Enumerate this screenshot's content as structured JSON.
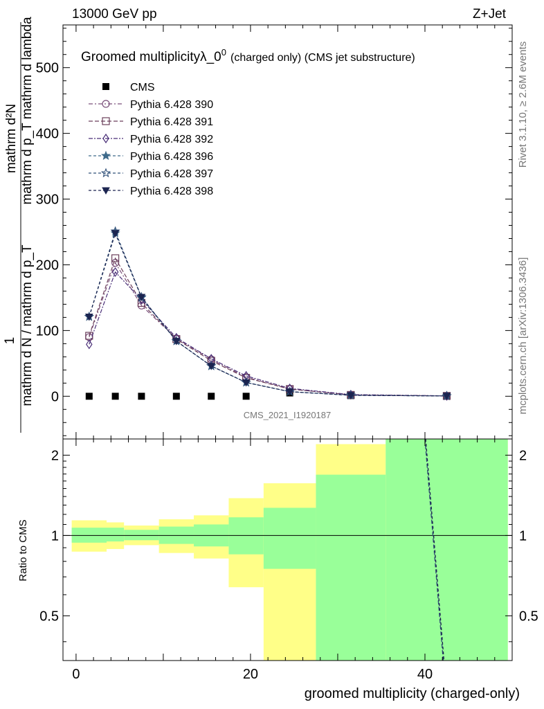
{
  "header": {
    "beam": "13000 GeV pp",
    "process": "Z+Jet"
  },
  "side_labels": {
    "rivet": "Rivet 3.1.10, ≥ 2.6M events",
    "mcplots": "mcplots.cern.ch [arXiv:1306.3436]"
  },
  "chart_data": [
    {
      "type": "line",
      "title": "Groomed multiplicityλ_0",
      "title_sup": "0",
      "subtitle": "(charged only) (CMS jet substructure)",
      "analysis": "CMS_2021_I1920187",
      "ylabel_top": "1",
      "ylabel_num": "mathrm d²N",
      "ylabel_num2": "mathrm d p_T mathrm d lambda",
      "ylabel_den": "mathrm d N / mathrm d p_T",
      "ylim": [
        -65,
        565
      ],
      "yticks": [
        0,
        100,
        200,
        300,
        400,
        500
      ],
      "xlim": [
        -1.5,
        50
      ],
      "x": [
        1.5,
        4.5,
        7.5,
        11.5,
        15.5,
        19.5,
        24.5,
        31.5,
        42.5
      ],
      "series": [
        {
          "name": "CMS",
          "values": [
            0,
            0,
            0,
            0,
            0,
            0,
            5,
            1,
            0.5
          ]
        },
        {
          "name": "Pythia 6.428 390",
          "values": [
            90,
            203,
            138,
            88,
            56,
            29,
            11,
            2,
            0.5
          ]
        },
        {
          "name": "Pythia 6.428 391",
          "values": [
            92,
            210,
            142,
            87,
            54,
            28,
            11,
            2,
            0.5
          ]
        },
        {
          "name": "Pythia 6.428 392",
          "values": [
            79,
            189,
            147,
            89,
            57,
            31,
            12,
            2.5,
            0.6
          ]
        },
        {
          "name": "Pythia 6.428 396",
          "values": [
            121,
            248,
            150,
            84,
            46,
            21,
            7,
            1.5,
            0.4
          ]
        },
        {
          "name": "Pythia 6.428 397",
          "values": [
            121,
            251,
            151,
            84,
            46,
            21,
            7,
            1.5,
            0.4
          ]
        },
        {
          "name": "Pythia 6.428 398",
          "values": [
            121,
            248,
            151,
            84,
            46,
            21,
            7,
            1.5,
            0.4
          ]
        }
      ],
      "colors": [
        "#000000",
        "#7a4f7a",
        "#6b3f5a",
        "#4a2f78",
        "#3e6a8a",
        "#2f4f78",
        "#1c2550"
      ]
    },
    {
      "type": "area",
      "ylabel": "Ratio to CMS",
      "xlabel": "groomed multiplicity (charged-only)",
      "ylim": [
        0.34,
        2.3
      ],
      "yticks": [
        0.5,
        1,
        2
      ],
      "ytick_labels": [
        "0.5",
        "1",
        "2"
      ],
      "xticks": [
        0,
        20,
        40
      ],
      "xtick_labels": [
        "0",
        "20",
        "40"
      ],
      "bands": [
        {
          "xlo": -0.5,
          "xhi": 3.5,
          "g": [
            0.94,
            1.07
          ],
          "y": [
            0.87,
            1.14
          ]
        },
        {
          "xlo": 3.5,
          "xhi": 5.5,
          "g": [
            0.95,
            1.07
          ],
          "y": [
            0.89,
            1.12
          ]
        },
        {
          "xlo": 5.5,
          "xhi": 9.5,
          "g": [
            0.96,
            1.05
          ],
          "y": [
            0.92,
            1.09
          ]
        },
        {
          "xlo": 9.5,
          "xhi": 13.5,
          "g": [
            0.93,
            1.08
          ],
          "y": [
            0.86,
            1.15
          ]
        },
        {
          "xlo": 13.5,
          "xhi": 17.5,
          "g": [
            0.91,
            1.1
          ],
          "y": [
            0.82,
            1.19
          ]
        },
        {
          "xlo": 17.5,
          "xhi": 21.5,
          "g": [
            0.85,
            1.17
          ],
          "y": [
            0.64,
            1.38
          ]
        },
        {
          "xlo": 21.5,
          "xhi": 27.5,
          "g": [
            0.75,
            1.27
          ],
          "y": [
            0.34,
            1.57
          ]
        },
        {
          "xlo": 27.5,
          "xhi": 35.5,
          "g": [
            0.34,
            1.69
          ],
          "y": [
            0.34,
            2.2
          ]
        },
        {
          "xlo": 35.5,
          "xhi": 49.5,
          "g": [
            0.34,
            2.3
          ],
          "y": [
            0.34,
            2.3
          ]
        }
      ],
      "mc_ratio_line": {
        "x": [
          40.0,
          42.1
        ],
        "y": [
          2.3,
          0.34
        ]
      }
    }
  ]
}
